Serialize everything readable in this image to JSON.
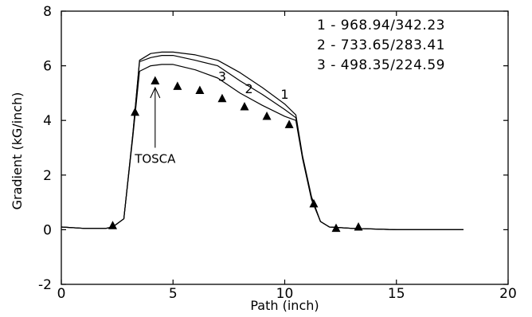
{
  "chart_data": {
    "type": "line",
    "xlabel": "Path (inch)",
    "ylabel": "Gradient (kG/inch)",
    "xlim": [
      0,
      20
    ],
    "ylim": [
      -2,
      8
    ],
    "x_ticks": [
      0,
      5,
      10,
      15,
      20
    ],
    "y_ticks": [
      -2,
      0,
      2,
      4,
      6,
      8
    ],
    "grid": false,
    "legend": {
      "placement": "top-right",
      "entries": [
        "1 - 968.94/342.23",
        "2 - 733.65/283.41",
        "3 - 498.35/224.59"
      ]
    },
    "series": [
      {
        "name": "1",
        "x": [
          0,
          1,
          2,
          2.3,
          2.8,
          3.2,
          3.5,
          4.0,
          4.5,
          5.0,
          6.0,
          7.0,
          8.0,
          9.0,
          10.0,
          10.5,
          10.8,
          11.2,
          11.6,
          12.0,
          13.0,
          15.0,
          18.0
        ],
        "y": [
          0.1,
          0.05,
          0.05,
          0.1,
          0.4,
          3.5,
          6.2,
          6.45,
          6.5,
          6.5,
          6.4,
          6.2,
          5.75,
          5.2,
          4.6,
          4.2,
          2.7,
          1.2,
          0.3,
          0.1,
          0.05,
          0.0,
          0.0
        ]
      },
      {
        "name": "2",
        "x": [
          0,
          1,
          2,
          2.3,
          2.8,
          3.2,
          3.5,
          4.0,
          4.5,
          5.0,
          6.0,
          7.0,
          8.0,
          9.0,
          10.0,
          10.5,
          10.8,
          11.2,
          11.6,
          12.0,
          13.0,
          15.0,
          18.0
        ],
        "y": [
          0.1,
          0.05,
          0.05,
          0.1,
          0.4,
          3.5,
          6.15,
          6.3,
          6.38,
          6.38,
          6.2,
          6.0,
          5.45,
          4.95,
          4.4,
          4.1,
          2.65,
          1.15,
          0.3,
          0.1,
          0.05,
          0.0,
          0.0
        ]
      },
      {
        "name": "3",
        "x": [
          0,
          1,
          2,
          2.3,
          2.8,
          3.2,
          3.5,
          4.0,
          4.5,
          5.0,
          6.0,
          7.0,
          8.0,
          9.0,
          10.0,
          10.5,
          10.8,
          11.2,
          11.6,
          12.0,
          13.0,
          15.0,
          18.0
        ],
        "y": [
          0.1,
          0.05,
          0.05,
          0.1,
          0.4,
          3.4,
          5.8,
          6.0,
          6.05,
          6.05,
          5.85,
          5.55,
          5.0,
          4.55,
          4.15,
          4.0,
          2.6,
          1.1,
          0.3,
          0.1,
          0.05,
          0.0,
          0.0
        ]
      }
    ],
    "markers": {
      "shape": "triangle",
      "x": [
        2.3,
        3.3,
        4.2,
        5.2,
        6.2,
        7.2,
        8.2,
        9.2,
        10.2,
        11.3,
        12.3,
        13.3
      ],
      "y": [
        0.15,
        4.3,
        5.45,
        5.25,
        5.1,
        4.8,
        4.5,
        4.15,
        3.85,
        0.95,
        0.05,
        0.1
      ]
    },
    "curve_labels": [
      {
        "text": "1",
        "x": 10.0,
        "y": 4.8
      },
      {
        "text": "2",
        "x": 8.4,
        "y": 5.0
      },
      {
        "text": "3",
        "x": 7.2,
        "y": 5.45
      }
    ],
    "annotation": {
      "text": "TOSCA",
      "arrow_from": [
        4.2,
        3.0
      ],
      "arrow_to": [
        4.2,
        5.2
      ],
      "text_x": 4.2,
      "text_y": 2.45
    }
  }
}
